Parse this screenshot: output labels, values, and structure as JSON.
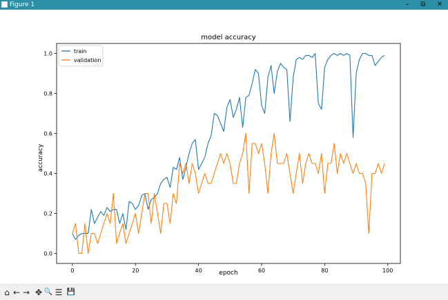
{
  "window": {
    "title": "Figure 1",
    "minimize_glyph": "–",
    "maximize_glyph": "⧉",
    "close_glyph": "✕"
  },
  "toolbar": {
    "items": [
      {
        "name": "home-icon",
        "glyph": "⌂"
      },
      {
        "name": "back-icon",
        "glyph": "←"
      },
      {
        "name": "forward-icon",
        "glyph": "→"
      },
      {
        "name": "pan-icon",
        "glyph": "✥"
      },
      {
        "name": "zoom-icon",
        "glyph": "🔍"
      },
      {
        "name": "configure-subplots-icon",
        "glyph": "☰"
      },
      {
        "name": "save-icon",
        "glyph": "💾"
      }
    ]
  },
  "chart_data": {
    "type": "line",
    "title": "model accuracy",
    "xlabel": "epoch",
    "ylabel": "accuracy",
    "xlim": [
      -5,
      104
    ],
    "ylim": [
      -0.05,
      1.05
    ],
    "xticks": [
      0,
      20,
      40,
      60,
      80,
      100
    ],
    "yticks": [
      0.0,
      0.2,
      0.4,
      0.6,
      0.8,
      1.0
    ],
    "xtick_labels": [
      "0",
      "20",
      "40",
      "60",
      "80",
      "100"
    ],
    "ytick_labels": [
      "0.0",
      "0.2",
      "0.4",
      "0.6",
      "0.8",
      "1.0"
    ],
    "legend_position": "top-left",
    "grid": false,
    "series": [
      {
        "name": "train",
        "color": "#1f77b4",
        "values": [
          0.1,
          0.07,
          0.09,
          0.1,
          0.1,
          0.1,
          0.22,
          0.15,
          0.18,
          0.21,
          0.19,
          0.23,
          0.21,
          0.22,
          0.22,
          0.15,
          0.2,
          0.12,
          0.26,
          0.25,
          0.22,
          0.24,
          0.29,
          0.3,
          0.22,
          0.27,
          0.28,
          0.3,
          0.35,
          0.37,
          0.38,
          0.33,
          0.43,
          0.42,
          0.48,
          0.37,
          0.43,
          0.5,
          0.55,
          0.57,
          0.42,
          0.45,
          0.48,
          0.55,
          0.59,
          0.7,
          0.69,
          0.65,
          0.61,
          0.73,
          0.77,
          0.68,
          0.72,
          0.78,
          0.63,
          0.78,
          0.79,
          0.85,
          0.92,
          0.9,
          0.74,
          0.7,
          0.88,
          0.94,
          0.8,
          0.91,
          0.95,
          0.93,
          0.92,
          0.66,
          0.88,
          0.97,
          0.98,
          0.97,
          0.99,
          0.99,
          0.98,
          1.0,
          0.75,
          0.72,
          0.93,
          0.97,
          0.99,
          1.0,
          0.99,
          1.0,
          0.99,
          1.0,
          0.99,
          0.58,
          0.9,
          0.97,
          1.0,
          1.0,
          0.99,
          0.99,
          0.94,
          0.96,
          0.98,
          0.99
        ]
      },
      {
        "name": "validation",
        "color": "#ff7f0e",
        "values": [
          0.1,
          0.15,
          0.0,
          0.0,
          0.15,
          0.0,
          0.1,
          0.1,
          0.05,
          0.1,
          0.15,
          0.2,
          0.15,
          0.3,
          0.05,
          0.1,
          0.15,
          0.05,
          0.1,
          0.15,
          0.2,
          0.1,
          0.2,
          0.3,
          0.3,
          0.15,
          0.3,
          0.2,
          0.1,
          0.25,
          0.25,
          0.15,
          0.3,
          0.25,
          0.45,
          0.4,
          0.45,
          0.35,
          0.45,
          0.4,
          0.3,
          0.35,
          0.4,
          0.35,
          0.35,
          0.4,
          0.45,
          0.5,
          0.45,
          0.5,
          0.45,
          0.35,
          0.35,
          0.45,
          0.5,
          0.6,
          0.3,
          0.55,
          0.55,
          0.5,
          0.55,
          0.45,
          0.3,
          0.5,
          0.6,
          0.45,
          0.45,
          0.45,
          0.5,
          0.4,
          0.3,
          0.4,
          0.5,
          0.35,
          0.45,
          0.5,
          0.45,
          0.45,
          0.4,
          0.5,
          0.3,
          0.45,
          0.45,
          0.55,
          0.4,
          0.5,
          0.45,
          0.5,
          0.45,
          0.4,
          0.45,
          0.4,
          0.4,
          0.35,
          0.1,
          0.4,
          0.4,
          0.45,
          0.4,
          0.45
        ]
      }
    ]
  }
}
